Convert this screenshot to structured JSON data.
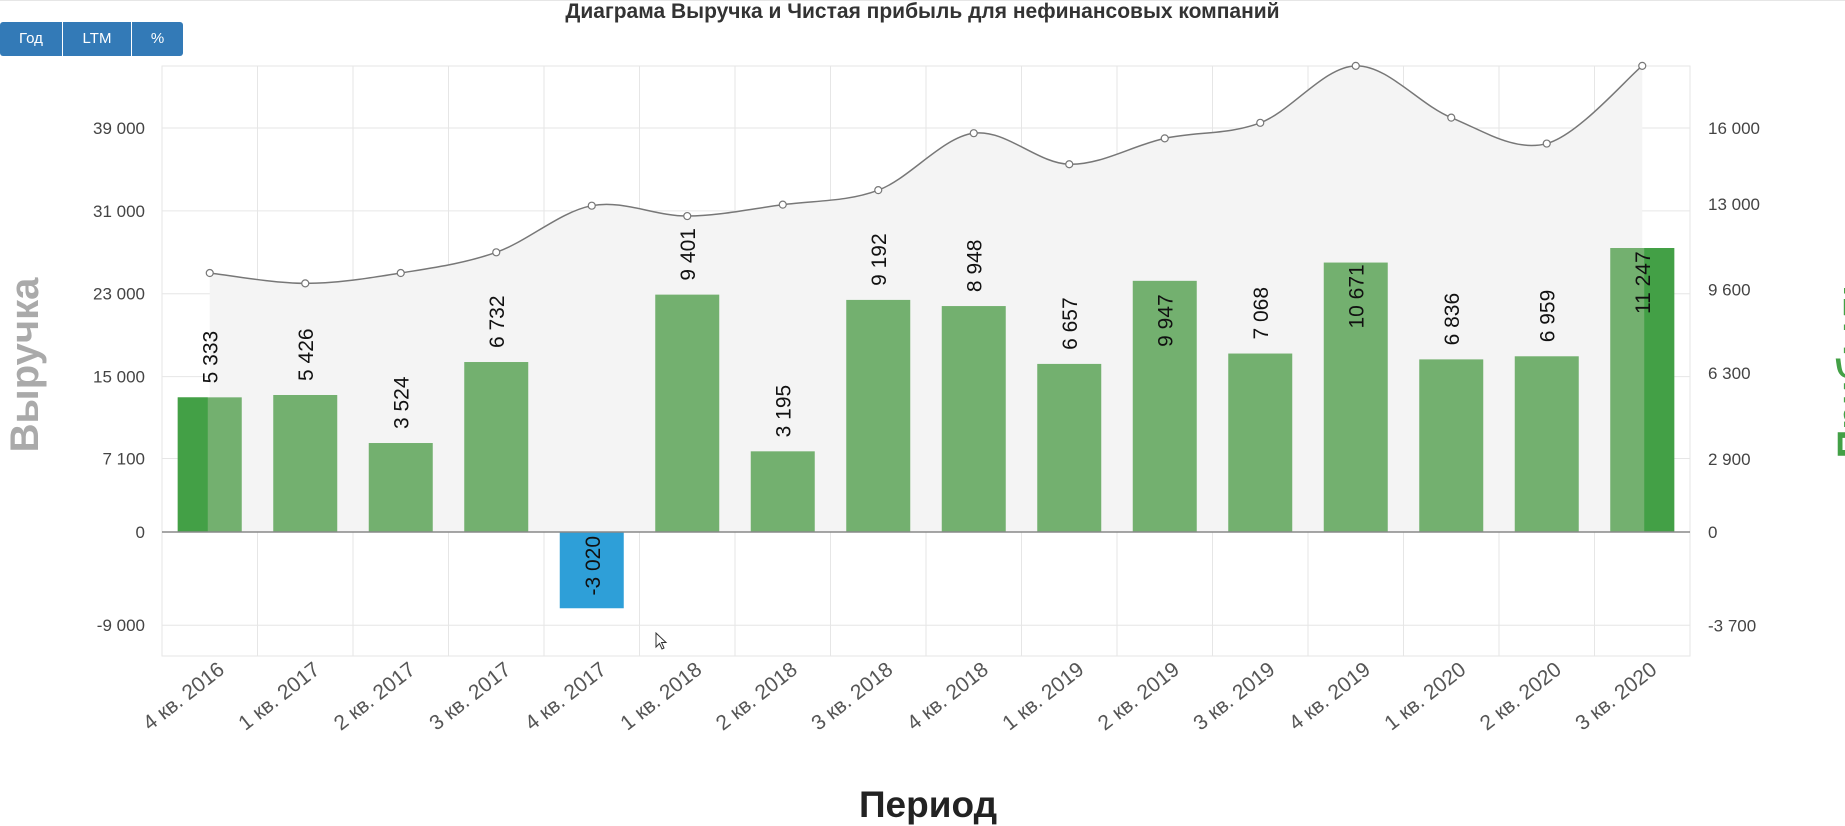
{
  "toolbar": {
    "buttons": [
      "Год",
      "LTM",
      "%"
    ]
  },
  "chart_data": {
    "type": "bar",
    "title": "Диаграма Выручка и Чистая прибыль для нефинансовых компаний",
    "xlabel": "Период",
    "ylabel_left": "Выручка",
    "ylabel_right": "Прибыль",
    "categories": [
      "4 кв. 2016",
      "1 кв. 2017",
      "2 кв. 2017",
      "3 кв. 2017",
      "4 кв. 2017",
      "1 кв. 2018",
      "2 кв. 2018",
      "3 кв. 2018",
      "4 кв. 2018",
      "1 кв. 2019",
      "2 кв. 2019",
      "3 кв. 2019",
      "4 кв. 2019",
      "1 кв. 2020",
      "2 кв. 2020",
      "3 кв. 2020"
    ],
    "left_axis": {
      "ticks": [
        -9000,
        0,
        7100,
        15000,
        23000,
        31000,
        39000
      ],
      "tick_labels": [
        "-9 000",
        "0",
        "7 100",
        "15 000",
        "23 000",
        "31 000",
        "39 000"
      ],
      "range": [
        -12000,
        45000
      ]
    },
    "right_axis": {
      "ticks": [
        -3700,
        0,
        2900,
        6300,
        9600,
        13000,
        16000
      ],
      "tick_labels": [
        "-3 700",
        "0",
        "2 900",
        "6 300",
        "9 600",
        "13 000",
        "16 000"
      ],
      "range": [
        -5000,
        18400
      ]
    },
    "series": [
      {
        "name": "Прибыль",
        "type": "bar",
        "axis": "right",
        "values": [
          5333,
          5426,
          3524,
          6732,
          -3020,
          9401,
          3195,
          9192,
          8948,
          6657,
          9947,
          7068,
          10671,
          6836,
          6959,
          11247
        ],
        "labels": [
          "5 333",
          "5 426",
          "3 524",
          "6 732",
          "-3 020",
          "9 401",
          "3 195",
          "9 192",
          "8 948",
          "6 657",
          "9 947",
          "7 068",
          "10 671",
          "6 836",
          "6 959",
          "11 247"
        ]
      },
      {
        "name": "Выручка",
        "type": "area",
        "axis": "left",
        "values": [
          25000,
          24000,
          25000,
          27000,
          31500,
          30500,
          31600,
          33000,
          38500,
          35500,
          38000,
          39500,
          45000,
          40000,
          37500,
          45000
        ]
      }
    ],
    "colors": {
      "profit_positive": "#73b06f",
      "profit_edge": "#43a046",
      "profit_negative": "#2e9fd8",
      "revenue_line": "#777777",
      "revenue_fill": "#f4f4f4",
      "grid": "#e6e6e6",
      "ylabel_left": "#aaaaaa",
      "ylabel_right": "#43a046"
    },
    "grid": true
  }
}
